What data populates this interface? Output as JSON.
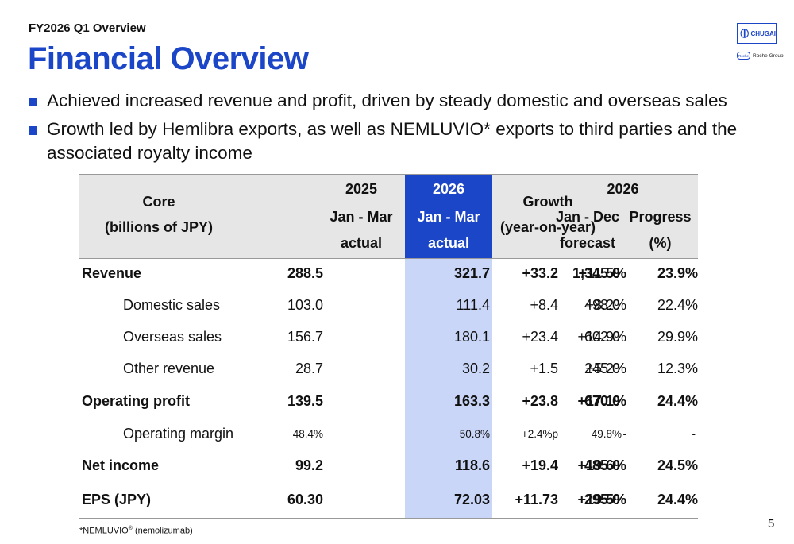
{
  "header": {
    "subtitle": "FY2026 Q1 Overview",
    "title": "Financial Overview",
    "logo_text": "CHUGAI",
    "roche_badge": "Roche",
    "roche_group": "Roche Group",
    "accent_color": "#1c46c8"
  },
  "bullets": [
    "Achieved increased revenue and profit, driven by steady domestic and overseas sales",
    "Growth led by Hemlibra exports, as well as NEMLUVIO* exports to third parties and the associated royalty income"
  ],
  "table": {
    "core_l1": "Core",
    "core_l2": "(billions of JPY)",
    "y2025": "2025",
    "y2025_l2": "Jan - Mar",
    "y2025_l3": "actual",
    "y2026": "2026",
    "y2026_l2": "Jan - Mar",
    "y2026_l3": "actual",
    "growth_l1": "Growth",
    "growth_l2": "(year-on-year)",
    "fc_year": "2026",
    "fc_l1": "Jan - Dec",
    "fc_l2": "forecast",
    "prog_l1": "Progress",
    "prog_l2": "(%)",
    "rows": [
      {
        "label": "Revenue",
        "v2025": "288.5",
        "v2026": "321.7",
        "growth": "+33.2",
        "pct": "+11.5%",
        "forecast": "1,345.0",
        "progress": "23.9%"
      },
      {
        "label": "Domestic sales",
        "v2025": "103.0",
        "v2026": "111.4",
        "growth": "+8.4",
        "pct": "+8.2%",
        "forecast": "498.0",
        "progress": "22.4%"
      },
      {
        "label": "Overseas sales",
        "v2025": "156.7",
        "v2026": "180.1",
        "growth": "+23.4",
        "pct": "+14.9%",
        "forecast": "602.0",
        "progress": "29.9%"
      },
      {
        "label": "Other revenue",
        "v2025": "28.7",
        "v2026": "30.2",
        "growth": "+1.5",
        "pct": "+5.2%",
        "forecast": "245.0",
        "progress": "12.3%"
      },
      {
        "label": "Operating profit",
        "v2025": "139.5",
        "v2026": "163.3",
        "growth": "+23.8",
        "pct": "+17.1%",
        "forecast": "670.0",
        "progress": "24.4%"
      },
      {
        "label": "Operating margin",
        "v2025": "48.4%",
        "v2026": "50.8%",
        "growth": "+2.4%p",
        "pct": "-",
        "forecast": "49.8%",
        "progress": "-"
      },
      {
        "label": "Net income",
        "v2025": "99.2",
        "v2026": "118.6",
        "growth": "+19.4",
        "pct": "+19.6%",
        "forecast": "485.0",
        "progress": "24.5%"
      },
      {
        "label": "EPS (JPY)",
        "v2025": "60.30",
        "v2026": "72.03",
        "growth": "+11.73",
        "pct": "+19.5%",
        "forecast": "295.0",
        "progress": "24.4%"
      }
    ]
  },
  "footnote": {
    "pre": "*NEMLUVIO",
    "reg": "®",
    "post": " (nemolizumab)"
  },
  "page_number": "5"
}
